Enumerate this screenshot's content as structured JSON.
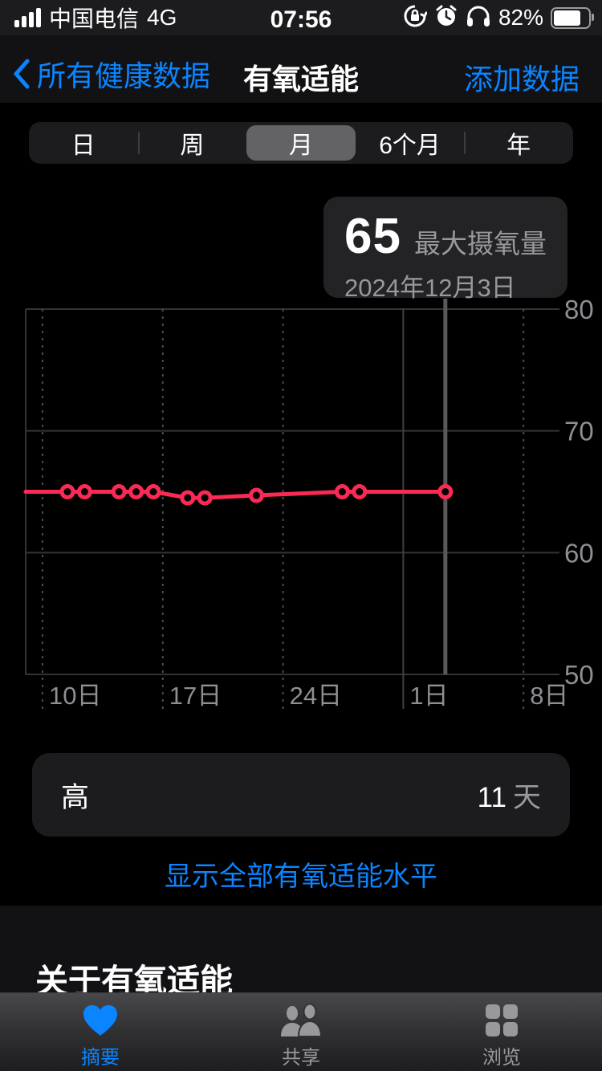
{
  "status_bar": {
    "carrier": "中国电信",
    "network": "4G",
    "time": "07:56",
    "battery_percent": "82%",
    "icons": [
      "signal-bars-icon",
      "orientation-lock-icon",
      "alarm-icon",
      "headphones-icon",
      "battery-icon"
    ]
  },
  "nav": {
    "back_label": "所有健康数据",
    "back_icon": "chevron-left-icon",
    "title": "有氧适能",
    "action_label": "添加数据"
  },
  "range_tabs": {
    "items": [
      {
        "label": "日",
        "selected": false
      },
      {
        "label": "周",
        "selected": false
      },
      {
        "label": "月",
        "selected": true
      },
      {
        "label": "6个月",
        "selected": false
      },
      {
        "label": "年",
        "selected": false
      }
    ]
  },
  "tooltip": {
    "value": "65",
    "metric": "最大摄氧量",
    "date": "2024年12月3日"
  },
  "chart_data": {
    "type": "line",
    "metric": "最大摄氧量",
    "ylim": [
      50,
      80
    ],
    "grid": true,
    "legend": "none",
    "y_ticks": [
      {
        "value": 80,
        "label": "80"
      },
      {
        "value": 70,
        "label": "70"
      },
      {
        "value": 60,
        "label": "60"
      },
      {
        "value": 50,
        "label": "50"
      }
    ],
    "x_ticks": [
      {
        "day": 0,
        "label": "10日",
        "style": "dashed"
      },
      {
        "day": 7,
        "label": "17日",
        "style": "dashed"
      },
      {
        "day": 14,
        "label": "24日",
        "style": "dashed"
      },
      {
        "day": 21,
        "label": "1日",
        "style": "solid"
      },
      {
        "day": 28,
        "label": "8日",
        "style": "dashed"
      }
    ],
    "series": [
      {
        "name": "最大摄氧量",
        "color": "#fb2a55",
        "enters_from_left_edge_at_value": 65,
        "points": [
          {
            "day": 1,
            "date": "11月11日",
            "value": 65
          },
          {
            "day": 2,
            "date": "11月12日",
            "value": 65
          },
          {
            "day": 4,
            "date": "11月14日",
            "value": 65
          },
          {
            "day": 5,
            "date": "11月15日",
            "value": 65
          },
          {
            "day": 6,
            "date": "11月16日",
            "value": 65
          },
          {
            "day": 8,
            "date": "11月18日",
            "value": 64.5
          },
          {
            "day": 9,
            "date": "11月19日",
            "value": 64.5
          },
          {
            "day": 12,
            "date": "11月22日",
            "value": 64.7
          },
          {
            "day": 17,
            "date": "11月27日",
            "value": 65
          },
          {
            "day": 18,
            "date": "11月28日",
            "value": 65
          },
          {
            "day": 23,
            "date": "2024年12月3日",
            "value": 65
          }
        ]
      }
    ],
    "selected_point": {
      "day": 23,
      "date": "2024年12月3日",
      "value": 65
    }
  },
  "summary_card": {
    "label": "高",
    "value": "11",
    "unit": "天"
  },
  "show_all_link": "显示全部有氧适能水平",
  "about": {
    "heading": "关于有氧适能"
  },
  "tab_bar": {
    "items": [
      {
        "label": "摘要",
        "icon": "heart-icon",
        "selected": true
      },
      {
        "label": "共享",
        "icon": "people-icon",
        "selected": false
      },
      {
        "label": "浏览",
        "icon": "grid-icon",
        "selected": false
      }
    ]
  },
  "colors": {
    "accent_blue": "#0a84ff",
    "series_pink": "#fb2a55",
    "label_gray": "#98989d",
    "selected_segment": "#636366"
  }
}
